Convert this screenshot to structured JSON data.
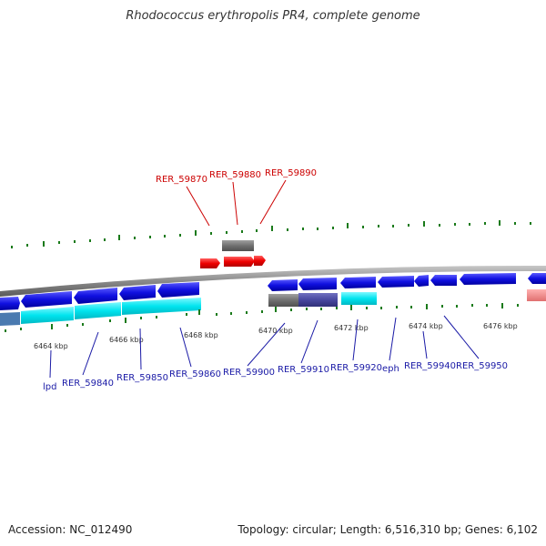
{
  "header": {
    "title": "Rhodococcus erythropolis PR4, complete genome"
  },
  "footer": {
    "accession": "Accession: NC_012490",
    "info": "Topology: circular; Length: 6,516,310 bp; Genes: 6,102"
  },
  "colors": {
    "forward_gene": "#2222dd",
    "reverse_gene": "#0000cc",
    "cds_cyan": "#00e0e8",
    "selected_gene": "#ee0000",
    "pseudo_gray": "#707070",
    "tick_green": "#1a7a1a",
    "backbone": "#8a8a8a",
    "label_top": "#cc0000",
    "label_bottom": "#1a1aa6",
    "rna_pink": "#f08080"
  },
  "scale_labels": [
    "6464 kbp",
    "6466 kbp",
    "6468 kbp",
    "6470 kbp",
    "6472 kbp",
    "6474 kbp",
    "6476 kbp"
  ],
  "top_labels": [
    "RER_59870",
    "RER_59880",
    "RER_59890"
  ],
  "bottom_labels": [
    "lpd",
    "RER_59840",
    "RER_59850",
    "RER_59860",
    "RER_59900",
    "RER_59910",
    "RER_59920",
    "eph",
    "RER_59940",
    "RER_59950"
  ]
}
